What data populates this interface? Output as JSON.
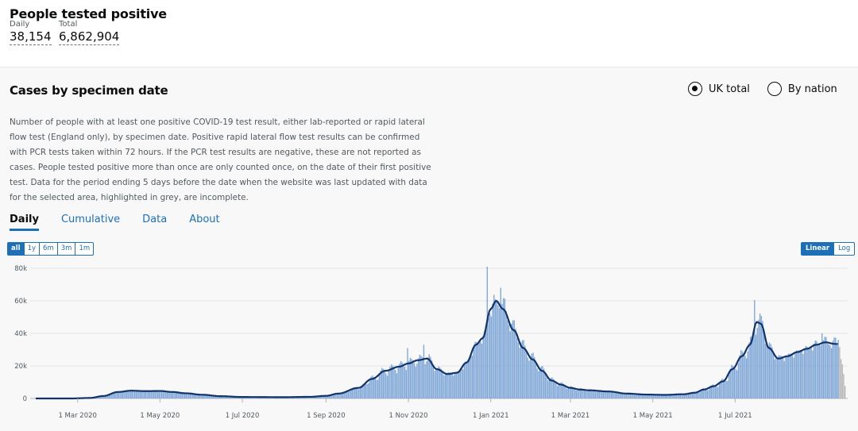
{
  "header": {
    "title": "People tested positive",
    "daily_label": "Daily",
    "daily_value": "38,154",
    "total_label": "Total",
    "total_value": "6,862,904"
  },
  "card": {
    "title": "Cases by specimen date",
    "radio_uk": "UK total",
    "radio_nation": "By nation",
    "description": "Number of people with at least one positive COVID-19 test result, either lab-reported or rapid lateral flow test (England only), by specimen date. Positive rapid lateral flow test results can be confirmed with PCR tests taken within 72 hours. If the PCR test results are negative, these are not reported as cases. People tested positive more than once are only counted once, on the date of their first positive test. Data for the period ending 5 days before the date when the website was last updated with data for the selected area, highlighted in grey, are incomplete.",
    "tabs": [
      "Daily",
      "Cumulative",
      "Data",
      "About"
    ],
    "range_buttons": [
      "all",
      "1y",
      "6m",
      "3m",
      "1m"
    ],
    "scale_buttons": [
      "Linear",
      "Log"
    ]
  },
  "colors": {
    "bar": "#7ea6d6",
    "bar_incomplete": "#b5b5b5",
    "average_line": "#12336b",
    "accent": "#1d70b8"
  },
  "chart_data": {
    "type": "bar",
    "x_start": "2020-01-30",
    "x_end": "2021-09-20",
    "incomplete_days": 5,
    "ylim": [
      0,
      80000
    ],
    "y_ticks": [
      {
        "value": 0,
        "label": "0"
      },
      {
        "value": 20000,
        "label": "20k"
      },
      {
        "value": 40000,
        "label": "40k"
      },
      {
        "value": 60000,
        "label": "60k"
      },
      {
        "value": 80000,
        "label": "80k"
      }
    ],
    "x_ticks": [
      {
        "date": "2020-03-01",
        "label": "1 Mar 2020"
      },
      {
        "date": "2020-05-01",
        "label": "1 May 2020"
      },
      {
        "date": "2020-07-01",
        "label": "1 Jul 2020"
      },
      {
        "date": "2020-09-01",
        "label": "1 Sep 2020"
      },
      {
        "date": "2020-11-01",
        "label": "1 Nov 2020"
      },
      {
        "date": "2021-01-01",
        "label": "1 Jan 2021"
      },
      {
        "date": "2021-03-01",
        "label": "1 Mar 2021"
      },
      {
        "date": "2021-05-01",
        "label": "1 May 2021"
      },
      {
        "date": "2021-07-01",
        "label": "1 Jul 2021"
      }
    ],
    "average_curve": [
      [
        "2020-01-30",
        0
      ],
      [
        "2020-02-25",
        0
      ],
      [
        "2020-03-10",
        300
      ],
      [
        "2020-03-20",
        1500
      ],
      [
        "2020-03-31",
        4000
      ],
      [
        "2020-04-10",
        4800
      ],
      [
        "2020-04-20",
        4500
      ],
      [
        "2020-05-01",
        4600
      ],
      [
        "2020-05-10",
        4000
      ],
      [
        "2020-05-20",
        3200
      ],
      [
        "2020-06-01",
        2300
      ],
      [
        "2020-06-15",
        1400
      ],
      [
        "2020-07-01",
        900
      ],
      [
        "2020-08-01",
        800
      ],
      [
        "2020-08-20",
        1000
      ],
      [
        "2020-09-01",
        1600
      ],
      [
        "2020-09-10",
        3000
      ],
      [
        "2020-09-25",
        6500
      ],
      [
        "2020-10-05",
        12000
      ],
      [
        "2020-10-15",
        17000
      ],
      [
        "2020-10-25",
        19500
      ],
      [
        "2020-11-01",
        21500
      ],
      [
        "2020-11-08",
        23500
      ],
      [
        "2020-11-15",
        24500
      ],
      [
        "2020-11-22",
        18000
      ],
      [
        "2020-11-30",
        15000
      ],
      [
        "2020-12-07",
        15800
      ],
      [
        "2020-12-14",
        22000
      ],
      [
        "2020-12-21",
        33000
      ],
      [
        "2020-12-26",
        37000
      ],
      [
        "2021-01-01",
        55000
      ],
      [
        "2021-01-05",
        60000
      ],
      [
        "2021-01-10",
        55000
      ],
      [
        "2021-01-18",
        42000
      ],
      [
        "2021-01-25",
        31000
      ],
      [
        "2021-02-01",
        24000
      ],
      [
        "2021-02-08",
        17000
      ],
      [
        "2021-02-15",
        11000
      ],
      [
        "2021-02-22",
        8500
      ],
      [
        "2021-03-01",
        6500
      ],
      [
        "2021-03-08",
        5500
      ],
      [
        "2021-03-15",
        5000
      ],
      [
        "2021-03-29",
        4300
      ],
      [
        "2021-04-12",
        3000
      ],
      [
        "2021-04-26",
        2400
      ],
      [
        "2021-05-10",
        2200
      ],
      [
        "2021-05-24",
        2600
      ],
      [
        "2021-06-01",
        3500
      ],
      [
        "2021-06-08",
        5500
      ],
      [
        "2021-06-15",
        7500
      ],
      [
        "2021-06-22",
        10500
      ],
      [
        "2021-06-29",
        18000
      ],
      [
        "2021-07-06",
        26000
      ],
      [
        "2021-07-12",
        33000
      ],
      [
        "2021-07-17",
        47000
      ],
      [
        "2021-07-20",
        46000
      ],
      [
        "2021-07-26",
        31000
      ],
      [
        "2021-08-02",
        24500
      ],
      [
        "2021-08-09",
        26000
      ],
      [
        "2021-08-16",
        28500
      ],
      [
        "2021-08-23",
        30500
      ],
      [
        "2021-08-30",
        33000
      ],
      [
        "2021-09-06",
        34500
      ],
      [
        "2021-09-13",
        33500
      ]
    ],
    "spikes": [
      [
        "2020-12-29",
        81000
      ],
      [
        "2021-01-04",
        61000
      ],
      [
        "2021-01-08",
        68000
      ],
      [
        "2021-07-15",
        60500
      ],
      [
        "2020-10-31",
        31000
      ],
      [
        "2020-11-12",
        33000
      ],
      [
        "2021-09-03",
        40000
      ]
    ]
  }
}
